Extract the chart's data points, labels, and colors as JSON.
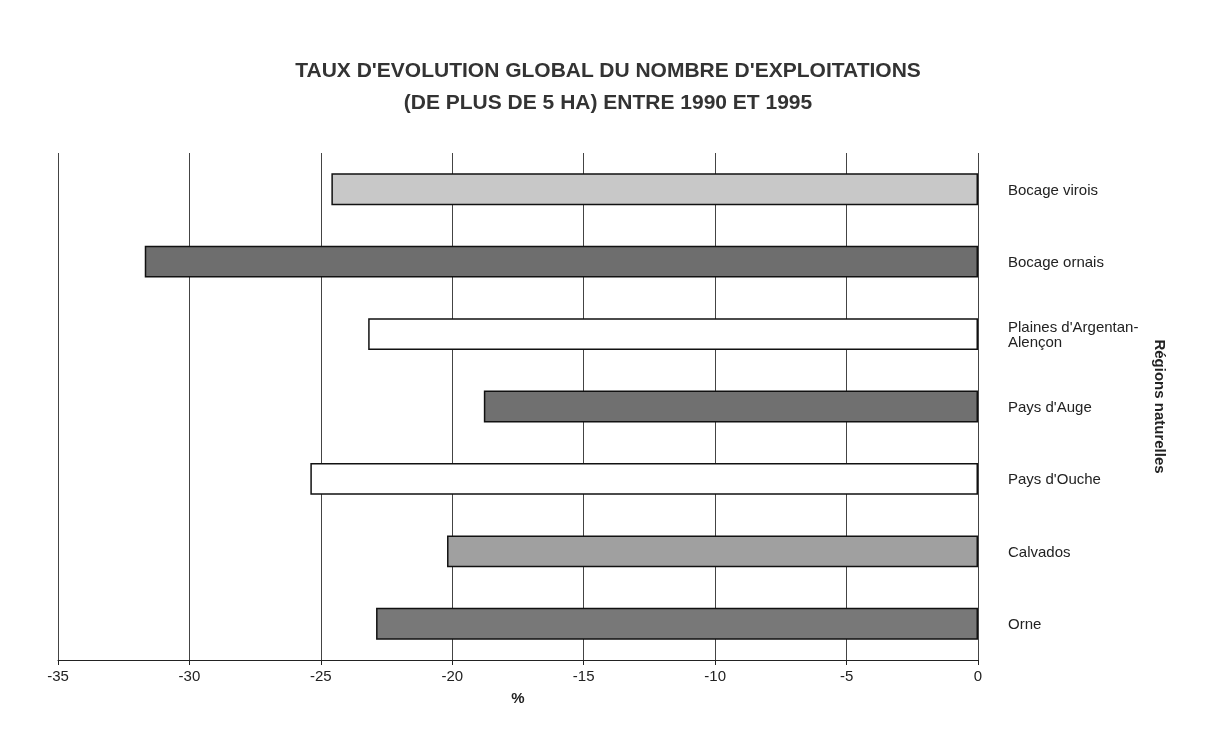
{
  "chart_data": {
    "type": "bar",
    "orientation": "horizontal",
    "title": "TAUX D'EVOLUTION GLOBAL DU NOMBRE D'EXPLOITATIONS\n(DE PLUS DE 5 HA) ENTRE 1990 ET 1995",
    "xlabel": "%",
    "ylabel": "Régions naturelles",
    "categories": [
      "Bocage virois",
      "Bocage ornais",
      "Plaines d'Argentan-Alençon",
      "Pays d'Auge",
      "Pays d'Ouche",
      "Calvados",
      "Orne"
    ],
    "values": [
      -24.6,
      -31.7,
      -23.2,
      -18.8,
      -25.4,
      -20.2,
      -22.9
    ],
    "colors": [
      "#c8c8c8",
      "#6e6e6e",
      "#ffffff",
      "#707070",
      "#ffffff",
      "#a0a0a0",
      "#787878"
    ],
    "xlim": [
      -35,
      0
    ],
    "xticks": [
      -35,
      -30,
      -25,
      -20,
      -15,
      -10,
      -5,
      0
    ],
    "grid": "x"
  }
}
